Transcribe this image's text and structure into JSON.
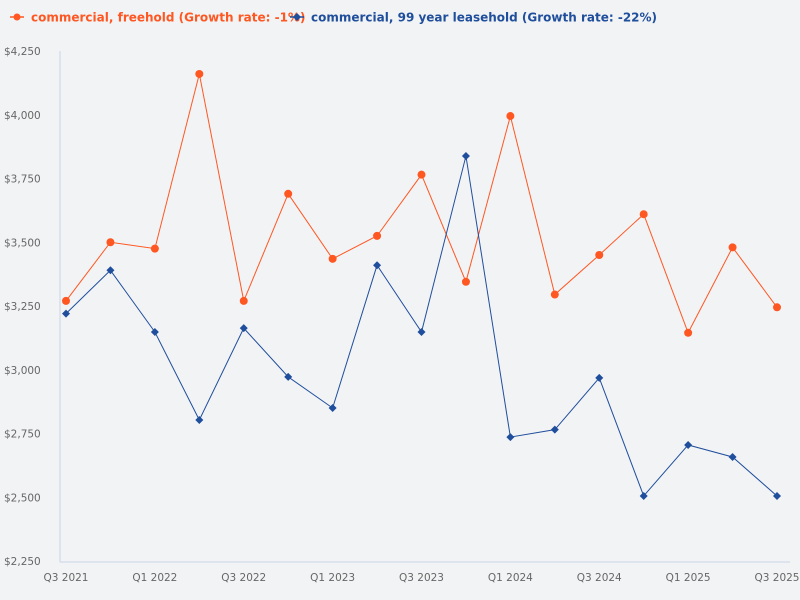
{
  "chart_data": {
    "type": "line",
    "categories": [
      "Q3 2021",
      "Q4 2021",
      "Q1 2022",
      "Q2 2022",
      "Q3 2022",
      "Q4 2022",
      "Q1 2023",
      "Q2 2023",
      "Q3 2023",
      "Q4 2023",
      "Q1 2024",
      "Q2 2024",
      "Q3 2024",
      "Q4 2024",
      "Q1 2025",
      "Q2 2025",
      "Q3 2025"
    ],
    "x_tick_labels": [
      "Q3 2021",
      "Q1 2022",
      "Q3 2022",
      "Q1 2023",
      "Q3 2023",
      "Q1 2024",
      "Q3 2024",
      "Q1 2025",
      "Q3 2025"
    ],
    "y_ticks": [
      "$2,250",
      "$2,500",
      "$2,750",
      "$3,000",
      "$3,250",
      "$3,500",
      "$3,750",
      "$4,000",
      "$4,250"
    ],
    "ylim": [
      2250,
      4250
    ],
    "grid": false,
    "legend_position": "top-left",
    "series": [
      {
        "name": "commercial, freehold (Growth rate: -1%)",
        "color": "#ff5722",
        "marker": "circle",
        "values": [
          3270,
          3500,
          3475,
          4160,
          3270,
          3690,
          3435,
          3525,
          3765,
          3345,
          3995,
          3295,
          3450,
          3610,
          3145,
          3480,
          3245
        ]
      },
      {
        "name": "commercial, 99 year leasehold (Growth rate: -22%)",
        "color": "#1f4e9c",
        "marker": "diamond",
        "values": [
          3220,
          3390,
          3148,
          2803,
          3163,
          2972,
          2850,
          3410,
          3148,
          3838,
          2736,
          2765,
          2968,
          2505,
          2705,
          2658,
          2505
        ]
      }
    ]
  }
}
